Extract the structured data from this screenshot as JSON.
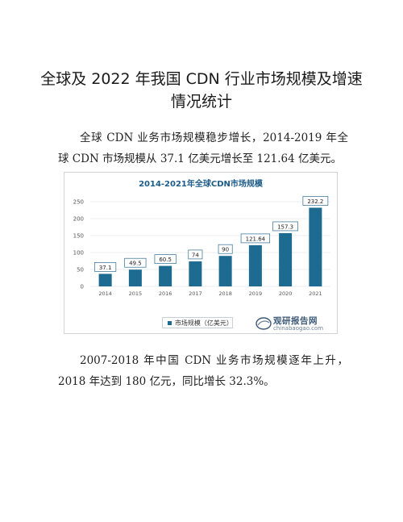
{
  "title_line1": "全球及 2022 年我国 CDN 行业市场规模及增速",
  "title_line2": "情况统计",
  "para1": "全球 CDN 业务市场规模稳步增长，2014-2019 年全球 CDN 市场规模从 37.1 亿美元增长至 121.64 亿美元。",
  "para2": "2007-2018 年中国 CDN 业务市场规模逐年上升，2018 年达到 180 亿元，同比增长 32.3%。",
  "watermark": {
    "main": "观研报告网",
    "sub": "chinabaogao.com"
  },
  "chart_data": {
    "type": "bar",
    "title": "2014-2021年全球CDN市场规模",
    "categories": [
      "2014",
      "2015",
      "2016",
      "2017",
      "2018",
      "2019",
      "2020",
      "2021"
    ],
    "series": [
      {
        "name": "市场规模（亿美元）",
        "values": [
          37.1,
          49.5,
          60.5,
          74,
          90,
          121.64,
          157.3,
          232.2
        ]
      }
    ],
    "value_labels": [
      "37.1",
      "49.5",
      "60.5",
      "74",
      "90",
      "121.64",
      "157.3",
      "232.2"
    ],
    "yticks": [
      "0",
      "50",
      "100",
      "150",
      "200",
      "250"
    ],
    "ylim": [
      0,
      250
    ],
    "grid": true,
    "legend_position": "bottom-left",
    "bar_color": "#1d6b91"
  }
}
